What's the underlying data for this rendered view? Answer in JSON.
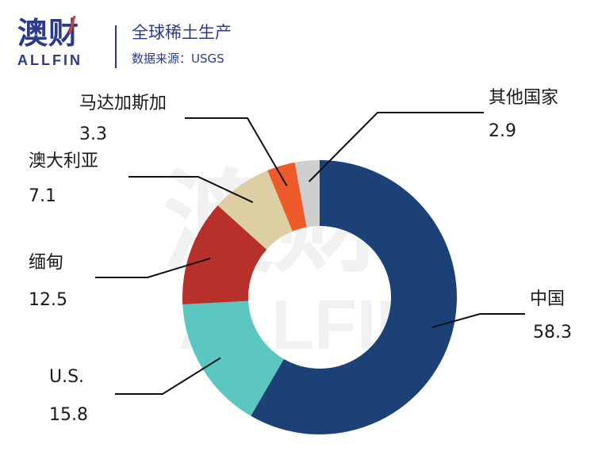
{
  "brand": {
    "name_cn": "澳财",
    "name_en": "ALLFIN"
  },
  "header": {
    "title": "全球稀土生产",
    "source": "数据来源：USGS"
  },
  "watermark": {
    "cn": "澳财",
    "en": "ALLFIN"
  },
  "chart_data": {
    "type": "donut",
    "title": "全球稀土生产",
    "source": "数据来源：USGS",
    "slices": [
      {
        "label": "中国",
        "value": 58.3,
        "color": "#1c4176"
      },
      {
        "label": "U.S.",
        "value": 15.8,
        "color": "#5cc6c0"
      },
      {
        "label": "缅甸",
        "value": 12.5,
        "color": "#b8302a"
      },
      {
        "label": "澳大利亚",
        "value": 7.1,
        "color": "#ddcfa3"
      },
      {
        "label": "马达加斯加",
        "value": 3.3,
        "color": "#ef5a2b"
      },
      {
        "label": "其他国家",
        "value": 2.9,
        "color": "#cfcfcf"
      }
    ],
    "start_angle_deg": 0,
    "direction": "clockwise"
  }
}
